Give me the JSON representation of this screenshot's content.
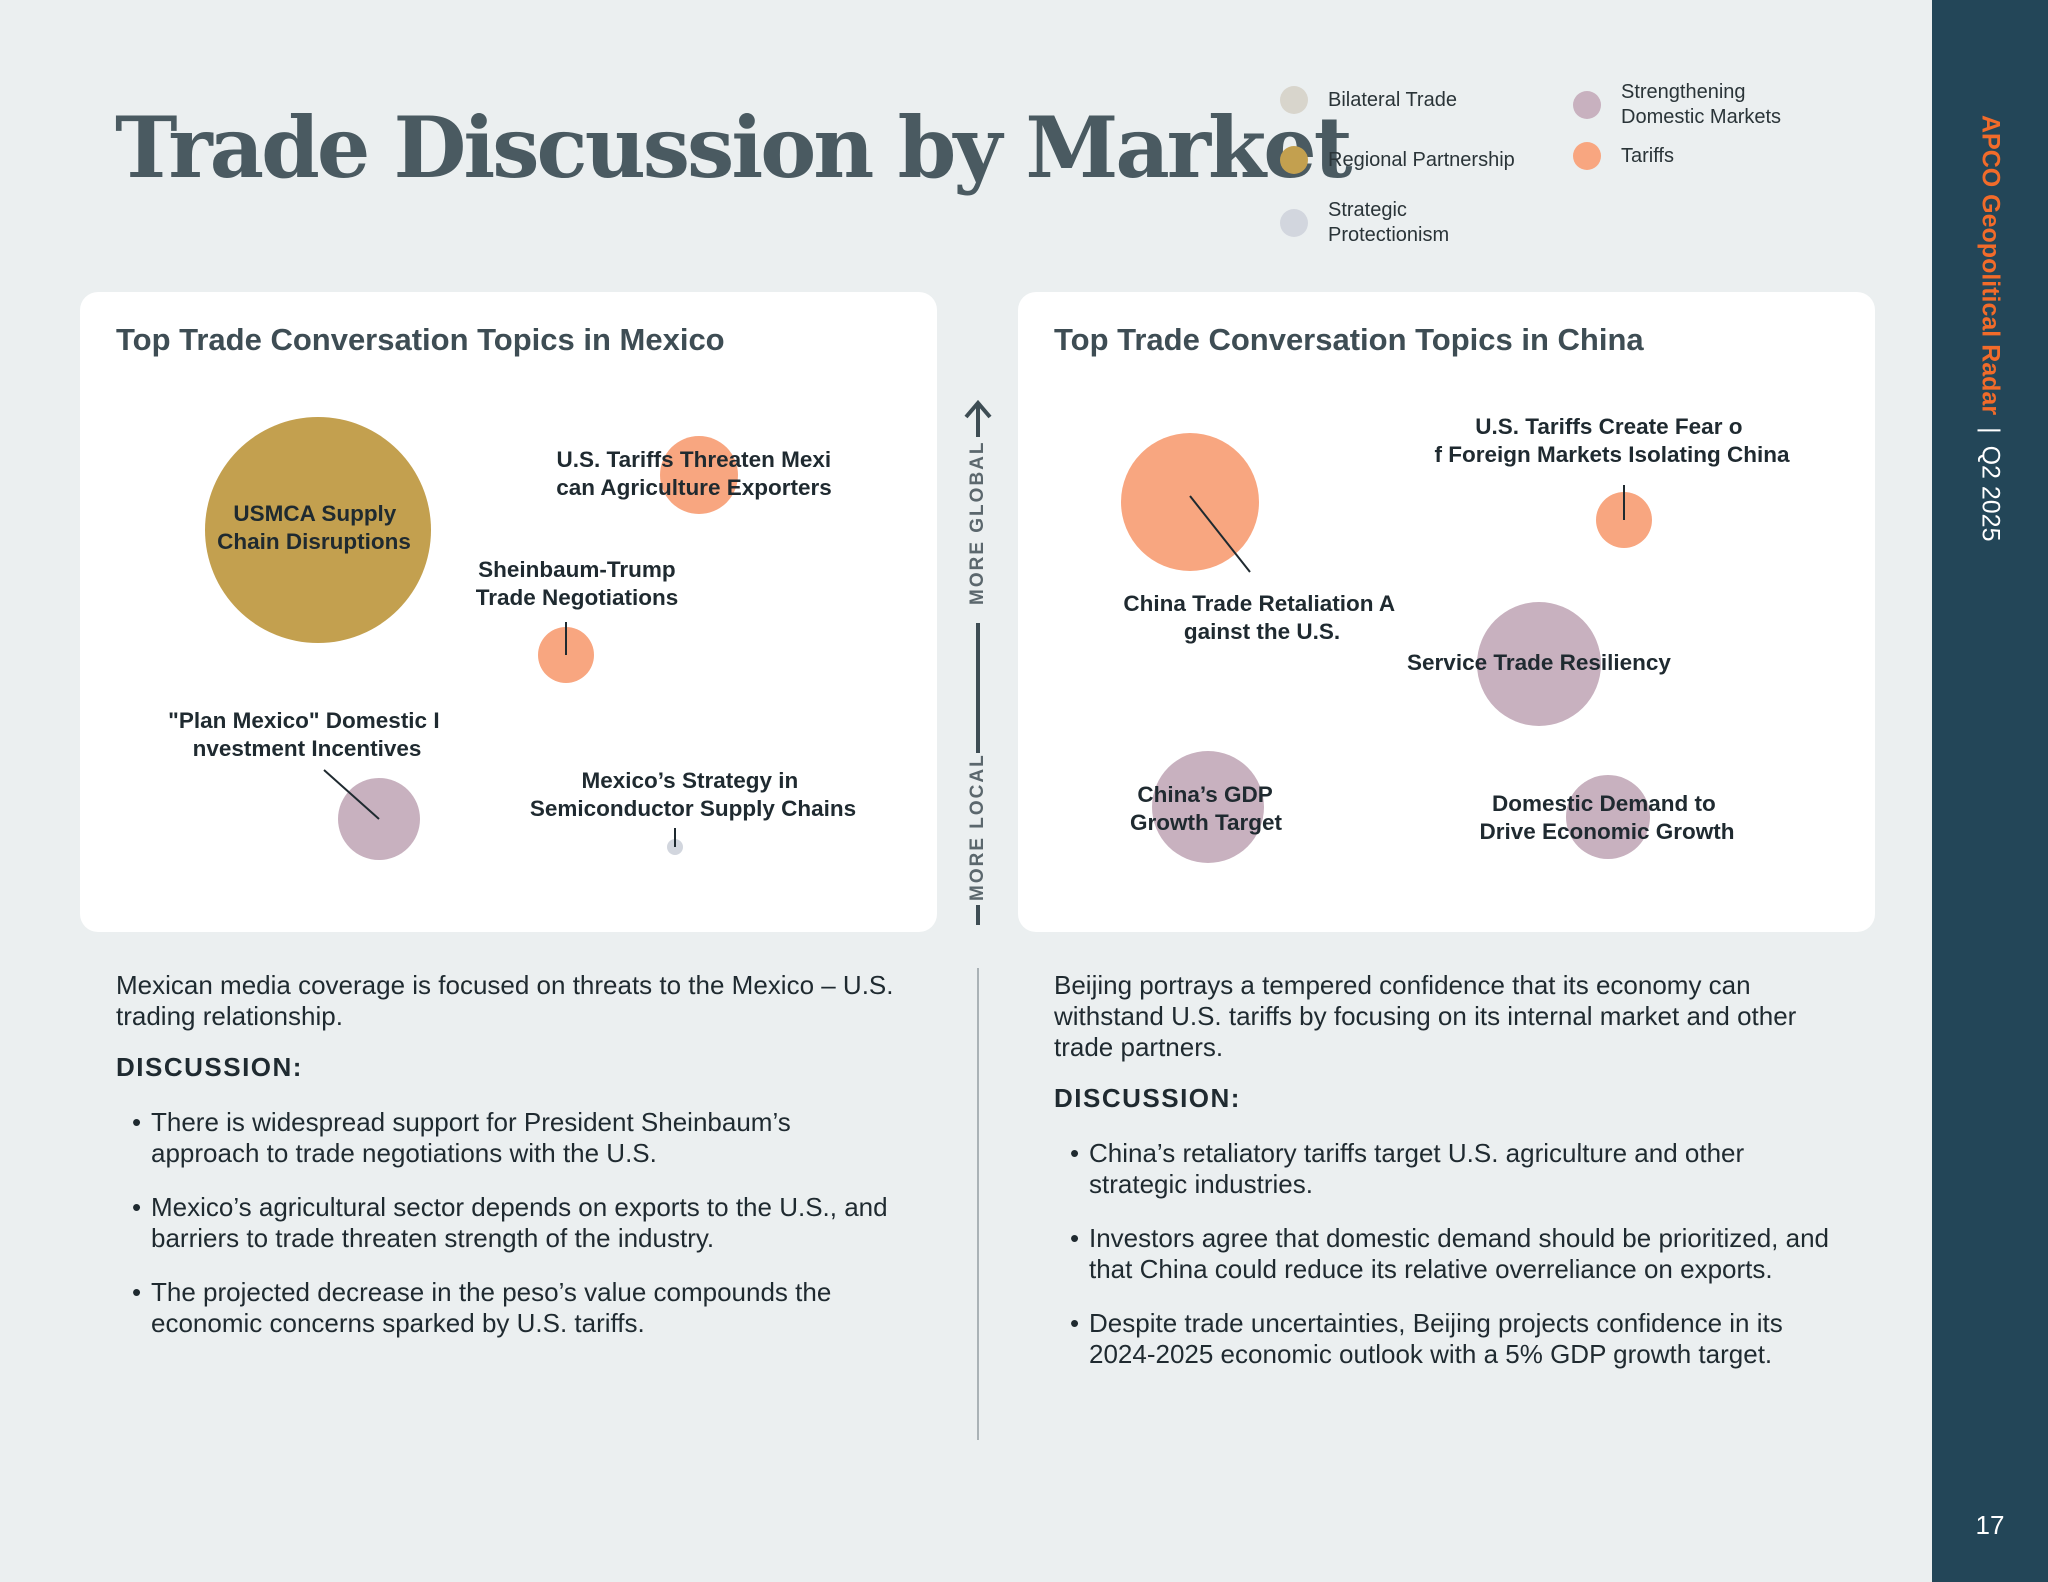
{
  "header": {
    "title": "Trade Discussion by Market"
  },
  "legend": [
    {
      "label": "Bilateral Trade",
      "color": "#d8d5cc"
    },
    {
      "label": "Regional Partnership",
      "color": "#c3a04f"
    },
    {
      "label": "Strategic Protectionism",
      "color": "#d2d6de"
    },
    {
      "label": "Strengthening Domestic Markets",
      "color": "#c8b1bf"
    },
    {
      "label": "Tariffs",
      "color": "#f8a680"
    }
  ],
  "sidebar": {
    "brand": "APCO Geopolitical Radar",
    "separator": "|",
    "period": "Q2 2025",
    "page_number": "17"
  },
  "axis": {
    "top_label": "MORE GLOBAL",
    "bottom_label": "MORE LOCAL"
  },
  "chart_data": [
    {
      "type": "bubble",
      "title": "Top Trade Conversation Topics in Mexico",
      "y_axis": "more local (bottom) to more global (top)",
      "points": [
        {
          "label": "USMCA Supply Chain Disruptions",
          "category": "Regional Partnership",
          "relative_size": 1.0
        },
        {
          "label": "U.S. Tariffs Threaten Mexican Agriculture Exporters",
          "category": "Tariffs",
          "relative_size": 0.34
        },
        {
          "label": "Sheinbaum-Trump Trade Negotiations",
          "category": "Tariffs",
          "relative_size": 0.25
        },
        {
          "label": "\"Plan Mexico\" Domestic Investment Incentives",
          "category": "Strengthening Domestic Markets",
          "relative_size": 0.36
        },
        {
          "label": "Mexico’s Strategy in Semiconductor Supply Chains",
          "category": "Strategic Protectionism",
          "relative_size": 0.07
        }
      ]
    },
    {
      "type": "bubble",
      "title": "Top Trade Conversation Topics in China",
      "y_axis": "more local (bottom) to more global (top)",
      "points": [
        {
          "label": "China Trade Retaliation Against the U.S.",
          "category": "Tariffs",
          "relative_size": 1.0
        },
        {
          "label": "U.S. Tariffs Create Fear of Foreign Markets Isolating China",
          "category": "Tariffs",
          "relative_size": 0.41
        },
        {
          "label": "Service Trade Resiliency",
          "category": "Strengthening Domestic Markets",
          "relative_size": 0.89
        },
        {
          "label": "China’s GDP Growth Target",
          "category": "Strengthening Domestic Markets",
          "relative_size": 0.8
        },
        {
          "label": "Domestic Demand to Drive Economic Growth",
          "category": "Strengthening Domestic Markets",
          "relative_size": 0.6
        }
      ]
    }
  ],
  "mexico_text": {
    "intro": "Mexican media coverage is focused on threats to the Mexico – U.S. trading relationship.",
    "discussion_heading": "DISCUSSION:",
    "bullets": [
      "There is widespread support for President Sheinbaum’s approach to trade negotiations with the U.S.",
      "Mexico’s agricultural sector depends on exports to the U.S., and barriers to trade threaten strength of the industry.",
      "The projected decrease in the peso’s value compounds the economic concerns sparked by U.S. tariffs."
    ]
  },
  "china_text": {
    "intro": "Beijing portrays a tempered confidence that its economy can withstand U.S. tariffs by focusing on its internal market and other trade partners.",
    "discussion_heading": "DISCUSSION:",
    "bullets": [
      "China’s retaliatory tariffs target U.S. agriculture and other strategic industries.",
      "Investors agree that domestic demand should be prioritized, and that China could reduce its relative overreliance on exports.",
      "Despite trade uncertainties, Beijing projects confidence in its 2024-2025 economic outlook with a 5% GDP growth target."
    ]
  }
}
